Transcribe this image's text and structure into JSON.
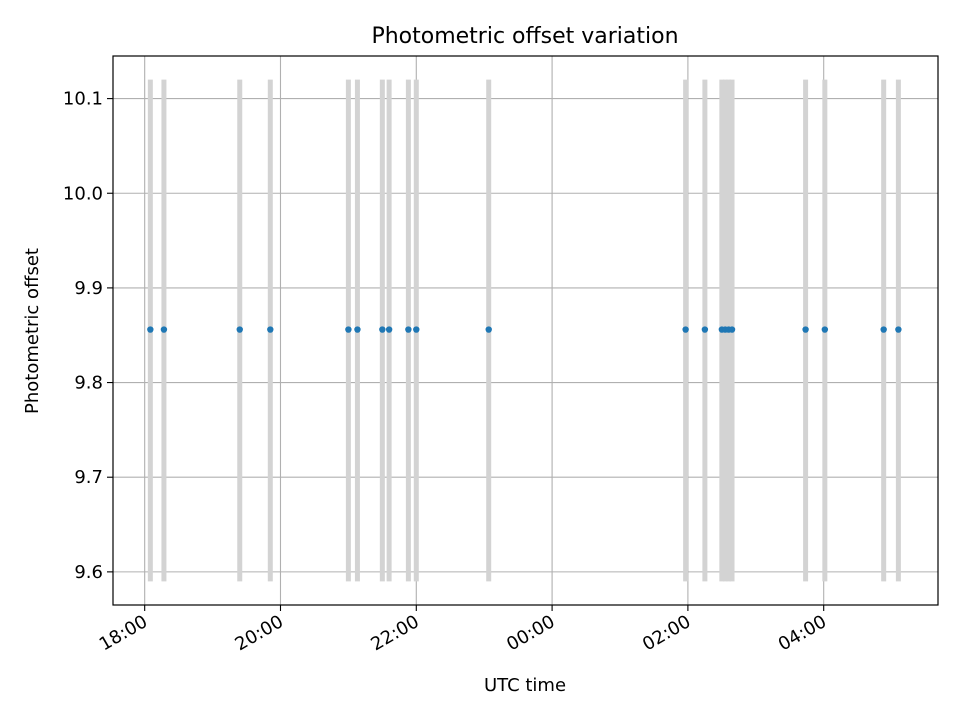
{
  "chart_data": {
    "type": "scatter",
    "title": "Photometric offset variation",
    "xlabel": "UTC time",
    "ylabel": "Photometric offset",
    "x_axis_kind": "time",
    "xlim": [
      "17:32",
      "05:41 (+1d)"
    ],
    "ylim": [
      9.565,
      10.145
    ],
    "grid": true,
    "x_ticks": [
      "18:00",
      "20:00",
      "22:00",
      "00:00",
      "02:00",
      "04:00"
    ],
    "y_ticks": [
      "9.6",
      "9.7",
      "9.8",
      "9.9",
      "10.0",
      "10.1"
    ],
    "points": [
      {
        "time": "18:05",
        "y": 9.856,
        "err_low": 9.59,
        "err_high": 10.12
      },
      {
        "time": "18:17",
        "y": 9.856,
        "err_low": 9.59,
        "err_high": 10.12
      },
      {
        "time": "19:24",
        "y": 9.856,
        "err_low": 9.59,
        "err_high": 10.12
      },
      {
        "time": "19:51",
        "y": 9.856,
        "err_low": 9.59,
        "err_high": 10.12
      },
      {
        "time": "21:00",
        "y": 9.856,
        "err_low": 9.59,
        "err_high": 10.12
      },
      {
        "time": "21:08",
        "y": 9.856,
        "err_low": 9.59,
        "err_high": 10.12
      },
      {
        "time": "21:30",
        "y": 9.856,
        "err_low": 9.59,
        "err_high": 10.12
      },
      {
        "time": "21:36",
        "y": 9.856,
        "err_low": 9.59,
        "err_high": 10.12
      },
      {
        "time": "21:53",
        "y": 9.856,
        "err_low": 9.59,
        "err_high": 10.12
      },
      {
        "time": "22:00",
        "y": 9.856,
        "err_low": 9.59,
        "err_high": 10.12
      },
      {
        "time": "23:04",
        "y": 9.856,
        "err_low": 9.59,
        "err_high": 10.12
      },
      {
        "time": "01:58",
        "y": 9.856,
        "err_low": 9.59,
        "err_high": 10.12
      },
      {
        "time": "02:15",
        "y": 9.856,
        "err_low": 9.59,
        "err_high": 10.12
      },
      {
        "time": "02:30",
        "y": 9.856,
        "err_low": 9.59,
        "err_high": 10.12
      },
      {
        "time": "02:33",
        "y": 9.856,
        "err_low": 9.59,
        "err_high": 10.12
      },
      {
        "time": "02:36",
        "y": 9.856,
        "err_low": 9.59,
        "err_high": 10.12
      },
      {
        "time": "02:39",
        "y": 9.856,
        "err_low": 9.59,
        "err_high": 10.12
      },
      {
        "time": "03:44",
        "y": 9.856,
        "err_low": 9.59,
        "err_high": 10.12
      },
      {
        "time": "04:01",
        "y": 9.856,
        "err_low": 9.59,
        "err_high": 10.12
      },
      {
        "time": "04:53",
        "y": 9.856,
        "err_low": 9.59,
        "err_high": 10.12
      },
      {
        "time": "05:06",
        "y": 9.856,
        "err_low": 9.59,
        "err_high": 10.12
      }
    ],
    "colors": {
      "marker": "#1f77b4",
      "errorbar": "#d3d3d3",
      "grid": "#b0b0b0",
      "axes": "#000000"
    }
  }
}
